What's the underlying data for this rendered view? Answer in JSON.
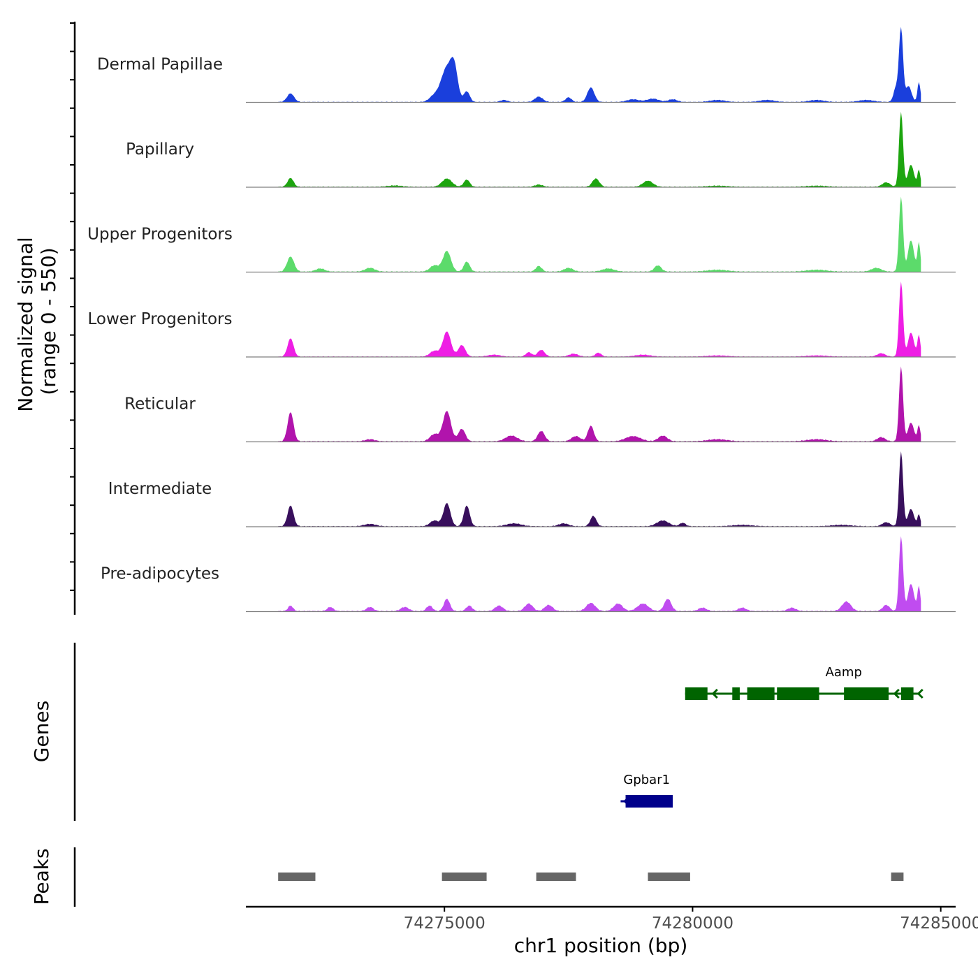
{
  "chart_data": {
    "type": "area",
    "title": "",
    "xlabel": "chr1 position (bp)",
    "ylabel": "Normalized signal\n(range 0 - 550)",
    "ylabel_lines": [
      "Normalized signal",
      "(range 0 - 550)"
    ],
    "ylim": [
      0,
      550
    ],
    "xlim": [
      74271000,
      74285300
    ],
    "x_ticks": [
      74275000,
      74280000,
      74285000
    ],
    "x_tick_labels": [
      "74275000",
      "74280000",
      "74285000"
    ],
    "data_end": 74284600,
    "series": [
      {
        "name": "Dermal Papillae",
        "color": "#1a3fdc",
        "peaks": [
          [
            74271900,
            70,
            65
          ],
          [
            74274780,
            90,
            40
          ],
          [
            74275050,
            120,
            260
          ],
          [
            74275200,
            70,
            200
          ],
          [
            74275450,
            60,
            80
          ],
          [
            74276200,
            70,
            15
          ],
          [
            74276900,
            80,
            40
          ],
          [
            74277500,
            60,
            35
          ],
          [
            74277950,
            70,
            110
          ],
          [
            74278800,
            120,
            20
          ],
          [
            74279200,
            120,
            25
          ],
          [
            74279600,
            90,
            20
          ],
          [
            74280500,
            150,
            15
          ],
          [
            74281500,
            150,
            15
          ],
          [
            74282500,
            150,
            15
          ],
          [
            74283500,
            150,
            15
          ],
          [
            74284100,
            50,
            110
          ],
          [
            74284200,
            40,
            550
          ],
          [
            74284350,
            60,
            120
          ],
          [
            74284560,
            30,
            150
          ]
        ],
        "baseline": 6
      },
      {
        "name": "Papillary",
        "color": "#1da50f",
        "peaks": [
          [
            74271900,
            60,
            80
          ],
          [
            74274000,
            150,
            12
          ],
          [
            74275050,
            100,
            75
          ],
          [
            74275450,
            60,
            65
          ],
          [
            74276900,
            80,
            20
          ],
          [
            74278050,
            70,
            75
          ],
          [
            74279100,
            100,
            55
          ],
          [
            74280500,
            200,
            10
          ],
          [
            74282500,
            200,
            10
          ],
          [
            74283900,
            80,
            40
          ],
          [
            74284200,
            40,
            680
          ],
          [
            74284400,
            60,
            200
          ],
          [
            74284560,
            30,
            150
          ]
        ],
        "baseline": 8
      },
      {
        "name": "Upper Progenitors",
        "color": "#5cdb6b",
        "peaks": [
          [
            74271900,
            70,
            120
          ],
          [
            74272500,
            90,
            25
          ],
          [
            74273500,
            100,
            30
          ],
          [
            74274800,
            90,
            50
          ],
          [
            74275050,
            80,
            165
          ],
          [
            74275450,
            60,
            80
          ],
          [
            74276900,
            60,
            45
          ],
          [
            74277500,
            90,
            30
          ],
          [
            74278300,
            120,
            25
          ],
          [
            74279300,
            70,
            50
          ],
          [
            74280500,
            200,
            15
          ],
          [
            74282500,
            200,
            15
          ],
          [
            74283700,
            100,
            30
          ],
          [
            74284200,
            40,
            600
          ],
          [
            74284400,
            60,
            250
          ],
          [
            74284560,
            30,
            230
          ]
        ],
        "baseline": 8
      },
      {
        "name": "Lower Progenitors",
        "color": "#ee1ee4",
        "peaks": [
          [
            74271900,
            60,
            190
          ],
          [
            74274800,
            90,
            60
          ],
          [
            74275050,
            80,
            260
          ],
          [
            74275350,
            70,
            120
          ],
          [
            74276000,
            120,
            20
          ],
          [
            74276700,
            60,
            45
          ],
          [
            74276950,
            70,
            70
          ],
          [
            74277600,
            90,
            30
          ],
          [
            74278100,
            60,
            40
          ],
          [
            74279000,
            150,
            20
          ],
          [
            74280500,
            200,
            12
          ],
          [
            74282500,
            200,
            12
          ],
          [
            74283800,
            80,
            35
          ],
          [
            74284200,
            40,
            780
          ],
          [
            74284400,
            60,
            250
          ],
          [
            74284560,
            30,
            220
          ]
        ],
        "baseline": 8
      },
      {
        "name": "Reticular",
        "color": "#b114ac",
        "peaks": [
          [
            74271900,
            60,
            280
          ],
          [
            74273500,
            100,
            20
          ],
          [
            74274800,
            90,
            70
          ],
          [
            74275050,
            80,
            290
          ],
          [
            74275350,
            70,
            120
          ],
          [
            74276350,
            120,
            55
          ],
          [
            74276950,
            70,
            100
          ],
          [
            74277650,
            90,
            50
          ],
          [
            74277950,
            60,
            150
          ],
          [
            74278800,
            150,
            50
          ],
          [
            74279400,
            90,
            55
          ],
          [
            74280500,
            200,
            20
          ],
          [
            74282500,
            200,
            20
          ],
          [
            74283800,
            80,
            40
          ],
          [
            74284200,
            40,
            720
          ],
          [
            74284400,
            60,
            180
          ],
          [
            74284560,
            30,
            150
          ]
        ],
        "baseline": 10
      },
      {
        "name": "Intermediate",
        "color": "#380f5c",
        "peaks": [
          [
            74271900,
            60,
            180
          ],
          [
            74273500,
            120,
            20
          ],
          [
            74274800,
            90,
            50
          ],
          [
            74275050,
            70,
            200
          ],
          [
            74275450,
            60,
            180
          ],
          [
            74276400,
            150,
            25
          ],
          [
            74277400,
            100,
            25
          ],
          [
            74278000,
            60,
            90
          ],
          [
            74279400,
            120,
            50
          ],
          [
            74279800,
            60,
            30
          ],
          [
            74281000,
            200,
            12
          ],
          [
            74283000,
            200,
            12
          ],
          [
            74283900,
            80,
            35
          ],
          [
            74284200,
            40,
            650
          ],
          [
            74284400,
            60,
            150
          ],
          [
            74284560,
            30,
            100
          ]
        ],
        "baseline": 8
      },
      {
        "name": "Pre-adipocytes",
        "color": "#c04cf0",
        "peaks": [
          [
            74271900,
            50,
            40
          ],
          [
            74272700,
            60,
            30
          ],
          [
            74273500,
            70,
            30
          ],
          [
            74274200,
            80,
            30
          ],
          [
            74274700,
            60,
            40
          ],
          [
            74275050,
            60,
            90
          ],
          [
            74275500,
            60,
            40
          ],
          [
            74276100,
            80,
            40
          ],
          [
            74276700,
            80,
            55
          ],
          [
            74277100,
            80,
            45
          ],
          [
            74277950,
            90,
            60
          ],
          [
            74278500,
            90,
            55
          ],
          [
            74279000,
            110,
            55
          ],
          [
            74279500,
            70,
            90
          ],
          [
            74280200,
            80,
            25
          ],
          [
            74281000,
            80,
            25
          ],
          [
            74282000,
            80,
            25
          ],
          [
            74283100,
            90,
            70
          ],
          [
            74283900,
            70,
            45
          ],
          [
            74284200,
            40,
            550
          ],
          [
            74284400,
            60,
            200
          ],
          [
            74284560,
            30,
            180
          ]
        ],
        "baseline": 8
      }
    ],
    "genes": [
      {
        "name": "Aamp",
        "start": 74279850,
        "end": 74284550,
        "strand": "-",
        "color": "#006400",
        "exons": [
          [
            74279850,
            74280300
          ],
          [
            74280800,
            74280950
          ],
          [
            74281100,
            74281650
          ],
          [
            74281700,
            74282550
          ],
          [
            74283050,
            74283950
          ],
          [
            74284200,
            74284450
          ]
        ]
      },
      {
        "name": "Gpbar1",
        "start": 74278550,
        "end": 74279600,
        "strand": "+",
        "color": "#00008b",
        "exons": [
          [
            74278650,
            74279600
          ]
        ]
      }
    ],
    "genes_label": "Genes",
    "peaks_label": "Peaks",
    "peak_color": "#666666",
    "peaks": [
      [
        74271650,
        74272400
      ],
      [
        74274950,
        74275850
      ],
      [
        74276850,
        74277650
      ],
      [
        74279100,
        74279950
      ],
      [
        74284000,
        74284250
      ]
    ]
  }
}
